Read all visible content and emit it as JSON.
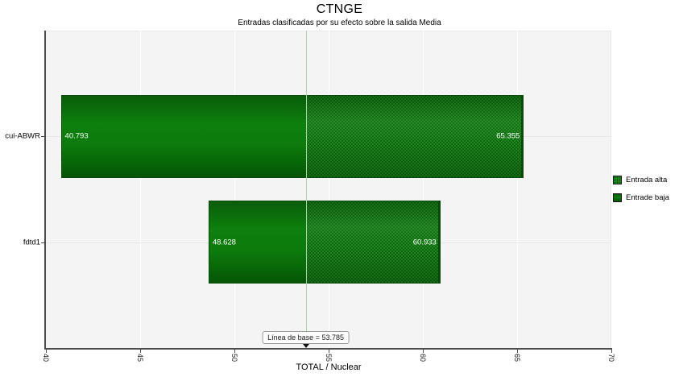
{
  "title": "CTNGE",
  "subtitle": "Entradas clasificadas por su efecto sobre la salida Media",
  "x_axis_title": "TOTAL / Nuclear",
  "baseline_label": "Línea de base = 53.785",
  "legend": {
    "items": [
      {
        "label": "Entrada alta",
        "style": "textured"
      },
      {
        "label": "Entrade baja",
        "style": "solid"
      }
    ]
  },
  "chart_data": {
    "type": "bar",
    "subtype": "tornado",
    "orientation": "horizontal",
    "title": "CTNGE",
    "subtitle": "Entradas clasificadas por su efecto sobre la salida Media",
    "xlabel": "TOTAL / Nuclear",
    "categories": [
      "cui-ABWR",
      "fdtd1"
    ],
    "series": [
      {
        "name": "Entrada alta",
        "values": [
          65.355,
          60.933
        ]
      },
      {
        "name": "Entrade baja",
        "values": [
          40.793,
          48.628
        ]
      }
    ],
    "baseline": 53.785,
    "xlim": [
      40,
      70
    ],
    "xticks": [
      40,
      45,
      50,
      55,
      60,
      65,
      70
    ],
    "grid": true,
    "legend_position": "right",
    "colors": {
      "bar_low_solid": "#0c7a0c",
      "bar_high_textured": "#1f8a1f",
      "baseline_line": "#abd3ab",
      "plot_background": "#f4f4f4",
      "axis": "#4d4d4d",
      "value_label_text": "#ffffff"
    }
  }
}
